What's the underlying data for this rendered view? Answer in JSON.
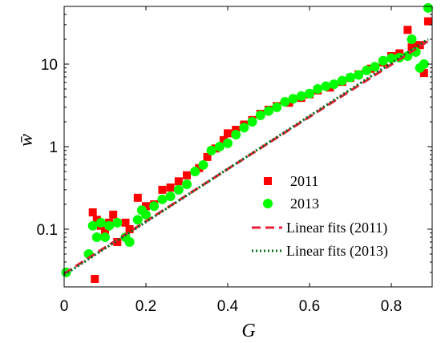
{
  "chart_data": {
    "type": "scatter",
    "xlabel": "G",
    "ylabel": "w̄",
    "xlim": [
      0,
      0.9
    ],
    "ylim": [
      0.02,
      50
    ],
    "yscale": "log",
    "grid": false,
    "legend_placement": "bottom-right",
    "xticks": [
      0,
      0.2,
      0.4,
      0.6,
      0.8
    ],
    "xtick_labels": [
      "0",
      "0.2",
      "0.4",
      "0.6",
      "0.8"
    ],
    "yticks": [
      0.1,
      1,
      10
    ],
    "ytick_labels": [
      "0.1",
      "1",
      "10"
    ],
    "series": [
      {
        "name": "2011",
        "kind": "scatter",
        "marker": "square",
        "color": "#ff0000",
        "points": [
          [
            0.07,
            0.16
          ],
          [
            0.075,
            0.025
          ],
          [
            0.08,
            0.13
          ],
          [
            0.09,
            0.11
          ],
          [
            0.1,
            0.09
          ],
          [
            0.11,
            0.12
          ],
          [
            0.12,
            0.15
          ],
          [
            0.13,
            0.07
          ],
          [
            0.15,
            0.12
          ],
          [
            0.16,
            0.1
          ],
          [
            0.18,
            0.24
          ],
          [
            0.2,
            0.19
          ],
          [
            0.22,
            0.2
          ],
          [
            0.24,
            0.3
          ],
          [
            0.26,
            0.32
          ],
          [
            0.28,
            0.38
          ],
          [
            0.3,
            0.45
          ],
          [
            0.33,
            0.55
          ],
          [
            0.35,
            0.75
          ],
          [
            0.37,
            0.95
          ],
          [
            0.39,
            1.2
          ],
          [
            0.4,
            1.45
          ],
          [
            0.42,
            1.6
          ],
          [
            0.44,
            1.85
          ],
          [
            0.46,
            2.1
          ],
          [
            0.48,
            2.5
          ],
          [
            0.5,
            2.8
          ],
          [
            0.52,
            3.1
          ],
          [
            0.55,
            3.4
          ],
          [
            0.58,
            3.9
          ],
          [
            0.6,
            4.3
          ],
          [
            0.62,
            4.8
          ],
          [
            0.65,
            5.2
          ],
          [
            0.68,
            6.1
          ],
          [
            0.7,
            6.8
          ],
          [
            0.72,
            7.5
          ],
          [
            0.75,
            8.8
          ],
          [
            0.78,
            10.5
          ],
          [
            0.8,
            12.5
          ],
          [
            0.82,
            13.5
          ],
          [
            0.84,
            26
          ],
          [
            0.85,
            16
          ],
          [
            0.86,
            17
          ],
          [
            0.87,
            17
          ],
          [
            0.88,
            7.8
          ],
          [
            0.89,
            33
          ]
        ]
      },
      {
        "name": "2013",
        "kind": "scatter",
        "marker": "circle",
        "color": "#00ff00",
        "points": [
          [
            0.005,
            0.03
          ],
          [
            0.06,
            0.05
          ],
          [
            0.07,
            0.11
          ],
          [
            0.08,
            0.08
          ],
          [
            0.09,
            0.12
          ],
          [
            0.1,
            0.08
          ],
          [
            0.11,
            0.11
          ],
          [
            0.13,
            0.12
          ],
          [
            0.15,
            0.08
          ],
          [
            0.16,
            0.07
          ],
          [
            0.18,
            0.13
          ],
          [
            0.19,
            0.17
          ],
          [
            0.2,
            0.15
          ],
          [
            0.22,
            0.19
          ],
          [
            0.24,
            0.23
          ],
          [
            0.26,
            0.25
          ],
          [
            0.28,
            0.3
          ],
          [
            0.3,
            0.35
          ],
          [
            0.32,
            0.5
          ],
          [
            0.34,
            0.6
          ],
          [
            0.36,
            0.9
          ],
          [
            0.38,
            1.0
          ],
          [
            0.4,
            1.1
          ],
          [
            0.42,
            1.4
          ],
          [
            0.44,
            1.7
          ],
          [
            0.46,
            2.0
          ],
          [
            0.48,
            2.4
          ],
          [
            0.5,
            2.7
          ],
          [
            0.52,
            3.0
          ],
          [
            0.54,
            3.5
          ],
          [
            0.56,
            3.8
          ],
          [
            0.58,
            4.1
          ],
          [
            0.6,
            4.4
          ],
          [
            0.62,
            5.0
          ],
          [
            0.64,
            5.4
          ],
          [
            0.66,
            5.7
          ],
          [
            0.68,
            6.3
          ],
          [
            0.7,
            6.9
          ],
          [
            0.72,
            7.4
          ],
          [
            0.74,
            8.4
          ],
          [
            0.76,
            9.3
          ],
          [
            0.78,
            11
          ],
          [
            0.8,
            11.8
          ],
          [
            0.82,
            12
          ],
          [
            0.84,
            12.5
          ],
          [
            0.85,
            20
          ],
          [
            0.86,
            14
          ],
          [
            0.87,
            9
          ],
          [
            0.88,
            10
          ],
          [
            0.89,
            48
          ]
        ]
      },
      {
        "name": "Linear fits (2011)",
        "kind": "line",
        "style": "dashed",
        "color": "#e8203a",
        "points": [
          [
            0,
            0.029
          ],
          [
            0.89,
            19
          ]
        ]
      },
      {
        "name": "Linear fits (2013)",
        "kind": "line",
        "style": "dotted",
        "color": "#0a6b1d",
        "points": [
          [
            0,
            0.028
          ],
          [
            0.89,
            20
          ]
        ]
      }
    ]
  }
}
